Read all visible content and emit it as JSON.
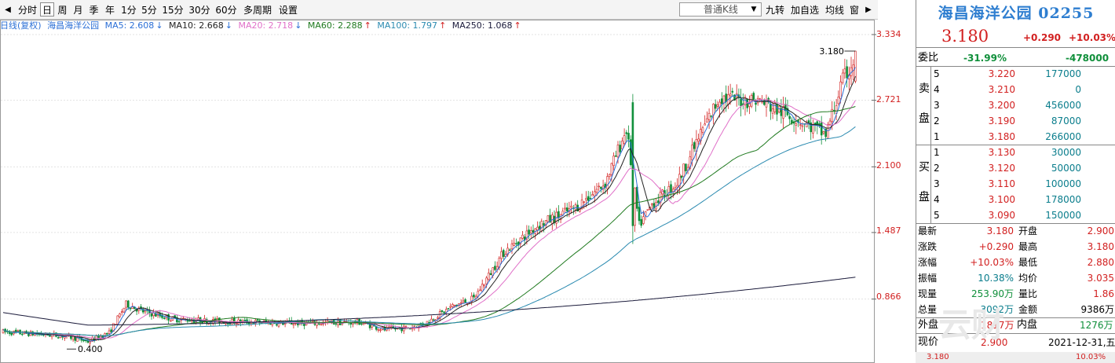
{
  "toolbar": {
    "nav_prev": "◀",
    "tabs": [
      "分时",
      "日",
      "周",
      "月",
      "季",
      "年",
      "1分",
      "5分",
      "15分",
      "30分",
      "60分",
      "多周期",
      "设置"
    ],
    "active_tab": "日",
    "chart_type": "普通K线",
    "right_tabs": [
      "九转",
      "加自选",
      "均线",
      "窗"
    ],
    "nav_next": "▶"
  },
  "ma_bar": {
    "line_label": "日线(复权)",
    "stock": "海昌海洋公园",
    "ma5": "MA5: 2.608",
    "ma10": "MA10: 2.668",
    "ma20": "MA20: 2.718",
    "ma60": "MA60: 2.288",
    "ma100": "MA100: 1.797",
    "ma250": "MA250: 1.068",
    "arrow_down": "↓",
    "arrow_up": "↑"
  },
  "colors": {
    "up": "#d22020",
    "down": "#0f8f3a",
    "ma5": "#2b6fd6",
    "ma10": "#222222",
    "ma20": "#e070c8",
    "ma60": "#1f7a1f",
    "ma100": "#2a8ab0",
    "ma250": "#1a1a3a",
    "title": "#2e7ed0"
  },
  "chart_data": {
    "type": "candlestick",
    "yticks": [
      "3.334",
      "2.721",
      "2.100",
      "1.487",
      "0.866"
    ],
    "ytick_values": [
      3.334,
      2.721,
      2.1,
      1.487,
      0.866
    ],
    "ylim": [
      0.18,
      3.52
    ],
    "high_label": "3.180",
    "low_label": "0.400",
    "ma_series": [
      "MA5",
      "MA10",
      "MA20",
      "MA60",
      "MA100",
      "MA250"
    ]
  },
  "panel": {
    "title": "海昌海洋公园 02255",
    "price": "3.180",
    "change": "+0.290",
    "change_pct": "+10.03%",
    "wb_label": "委比",
    "wb_pct": "-31.99%",
    "wb_diff": "-478000",
    "sell_label": [
      "卖",
      "盘"
    ],
    "buy_label": [
      "买",
      "盘"
    ],
    "asks": [
      {
        "lvl": "5",
        "price": "3.220",
        "vol": "177000"
      },
      {
        "lvl": "4",
        "price": "3.210",
        "vol": "0"
      },
      {
        "lvl": "3",
        "price": "3.200",
        "vol": "456000"
      },
      {
        "lvl": "2",
        "price": "3.190",
        "vol": "87000"
      },
      {
        "lvl": "1",
        "price": "3.180",
        "vol": "266000"
      }
    ],
    "bids": [
      {
        "lvl": "1",
        "price": "3.130",
        "vol": "30000"
      },
      {
        "lvl": "2",
        "price": "3.120",
        "vol": "50000"
      },
      {
        "lvl": "3",
        "price": "3.110",
        "vol": "100000"
      },
      {
        "lvl": "4",
        "price": "3.100",
        "vol": "178000"
      },
      {
        "lvl": "5",
        "price": "3.090",
        "vol": "150000"
      }
    ],
    "stats": [
      {
        "l1": "最新",
        "v1": "3.180",
        "l2": "开盘",
        "v2": "2.900"
      },
      {
        "l1": "涨跌",
        "v1": "+0.290",
        "l2": "最高",
        "v2": "3.180"
      },
      {
        "l1": "涨幅",
        "v1": "+10.03%",
        "l2": "最低",
        "v2": "2.880"
      },
      {
        "l1": "振幅",
        "v1": "10.38%",
        "l2": "均价",
        "v2": "3.035"
      },
      {
        "l1": "现量",
        "v1": "253.90万",
        "l2": "量比",
        "v2": "1.86"
      },
      {
        "l1": "总量",
        "v1": "3092万",
        "l2": "金额",
        "v2": "9386万"
      }
    ],
    "outer_label": "外盘",
    "outer_val": "1817万",
    "inner_label": "内盘",
    "inner_val": "1276万",
    "cur_label": "现价",
    "cur_val": "2.900",
    "date": "2021-12-31,五",
    "bottom_left": "3.180",
    "bottom_right": "10.03%",
    "watermark": "云财"
  }
}
